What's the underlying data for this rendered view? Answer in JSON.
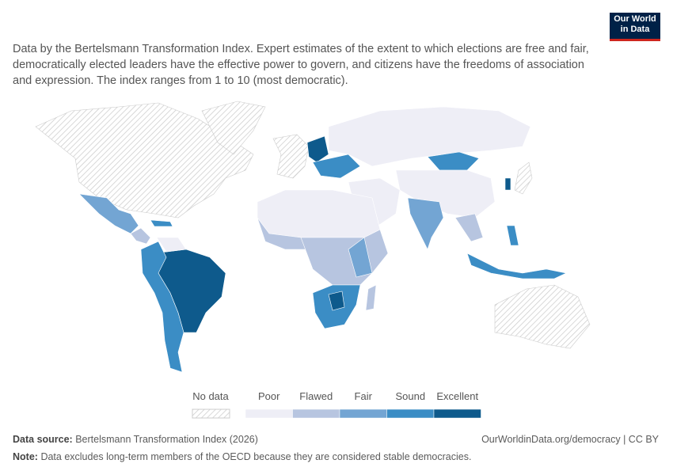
{
  "logo": {
    "line1": "Our World",
    "line2": "in Data"
  },
  "subtitle": "Data by the Bertelsmann Transformation Index. Expert estimates of the extent to which elections are free and fair, democratically elected leaders have the effective power to govern, and citizens have the freedoms of association and expression. The index ranges from 1 to 10 (most democratic).",
  "legend": {
    "no_data": "No data",
    "items": [
      {
        "label": "Poor",
        "color": "#eeeef6"
      },
      {
        "label": "Flawed",
        "color": "#b7c5e0"
      },
      {
        "label": "Fair",
        "color": "#73a5d3"
      },
      {
        "label": "Sound",
        "color": "#3b8dc5"
      },
      {
        "label": "Excellent",
        "color": "#0e5a8c"
      }
    ]
  },
  "footer": {
    "source_label": "Data source:",
    "source": "Bertelsmann Transformation Index (2026)",
    "url": "OurWorldinData.org/democracy | CC BY",
    "note_label": "Note:",
    "note": "Data excludes long-term members of the OECD because they are considered stable democracies."
  }
}
